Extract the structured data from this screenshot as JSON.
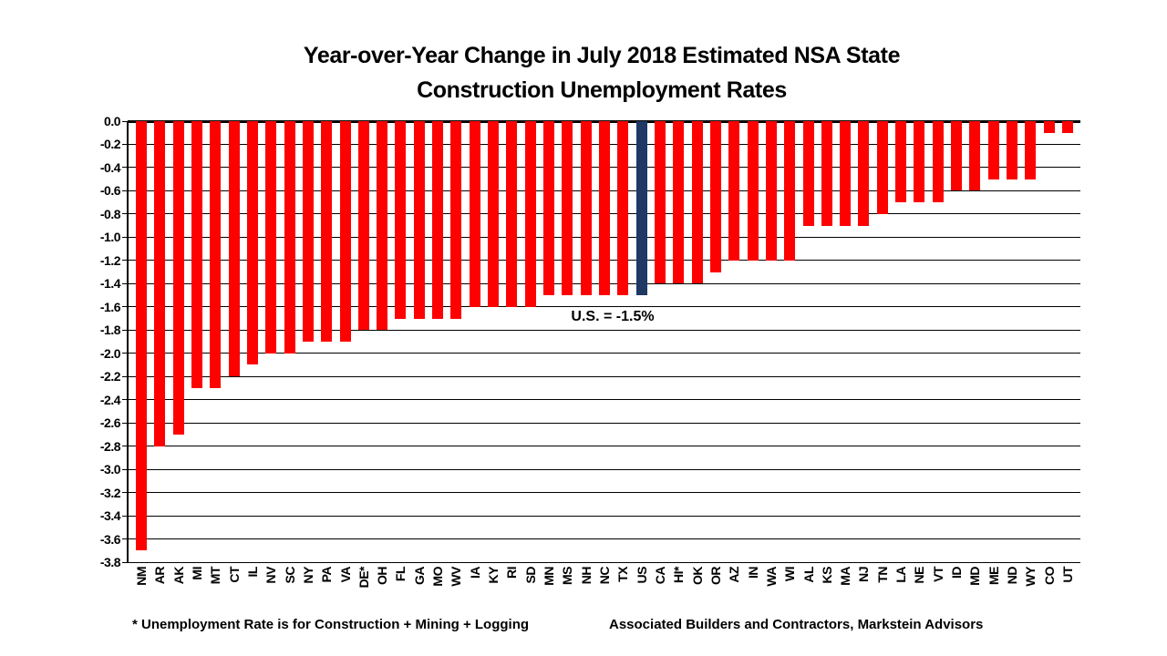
{
  "slide": {
    "title_line1": "Year-over-Year Change in July 2018 Estimated NSA State",
    "title_line2": "Construction Unemployment Rates",
    "annotation": "U.S. = -1.5%",
    "footnote_left": "* Unemployment Rate is for Construction + Mining + Logging",
    "footnote_right": "Associated Builders and Contractors, Markstein Advisors"
  },
  "chart_data": {
    "type": "bar",
    "title": "Year-over-Year Change in July 2018 Estimated NSA State Construction Unemployment Rates",
    "categories": [
      "NM",
      "AR",
      "AK",
      "MI",
      "MT",
      "CT",
      "IL",
      "NV",
      "SC",
      "NY",
      "PA",
      "VA",
      "DE*",
      "OH",
      "FL",
      "GA",
      "MO",
      "WV",
      "IA",
      "KY",
      "RI",
      "SD",
      "MN",
      "MS",
      "NH",
      "NC",
      "TX",
      "US",
      "CA",
      "HI*",
      "OK",
      "OR",
      "AZ",
      "IN",
      "WA",
      "WI",
      "AL",
      "KS",
      "MA",
      "NJ",
      "TN",
      "LA",
      "NE",
      "VT",
      "ID",
      "MD",
      "ME",
      "ND",
      "WY",
      "CO",
      "UT"
    ],
    "values": [
      -3.7,
      -2.8,
      -2.7,
      -2.3,
      -2.3,
      -2.2,
      -2.1,
      -2.0,
      -2.0,
      -1.9,
      -1.9,
      -1.9,
      -1.8,
      -1.8,
      -1.7,
      -1.7,
      -1.7,
      -1.7,
      -1.6,
      -1.6,
      -1.6,
      -1.6,
      -1.5,
      -1.5,
      -1.5,
      -1.5,
      -1.5,
      -1.5,
      -1.4,
      -1.4,
      -1.4,
      -1.3,
      -1.2,
      -1.2,
      -1.2,
      -1.2,
      -0.9,
      -0.9,
      -0.9,
      -0.9,
      -0.8,
      -0.7,
      -0.7,
      -0.7,
      -0.6,
      -0.6,
      -0.5,
      -0.5,
      -0.5,
      -0.1,
      -0.1
    ],
    "bar_color": "#FF0000",
    "highlight_category": "US",
    "highlight_color": "#1F3864",
    "annotation": "U.S. = -1.5%",
    "xlabel": "",
    "ylabel": "",
    "ylim": [
      -3.8,
      0.0
    ],
    "ytick_step": 0.2,
    "ytick_labels": [
      "0.0",
      "-0.2",
      "-0.4",
      "-0.6",
      "-0.8",
      "-1.0",
      "-1.2",
      "-1.4",
      "-1.6",
      "-1.8",
      "-2.0",
      "-2.2",
      "-2.4",
      "-2.6",
      "-2.8",
      "-3.0",
      "-3.2",
      "-3.4",
      "-3.6",
      "-3.8"
    ],
    "grid": true,
    "legend": false
  }
}
